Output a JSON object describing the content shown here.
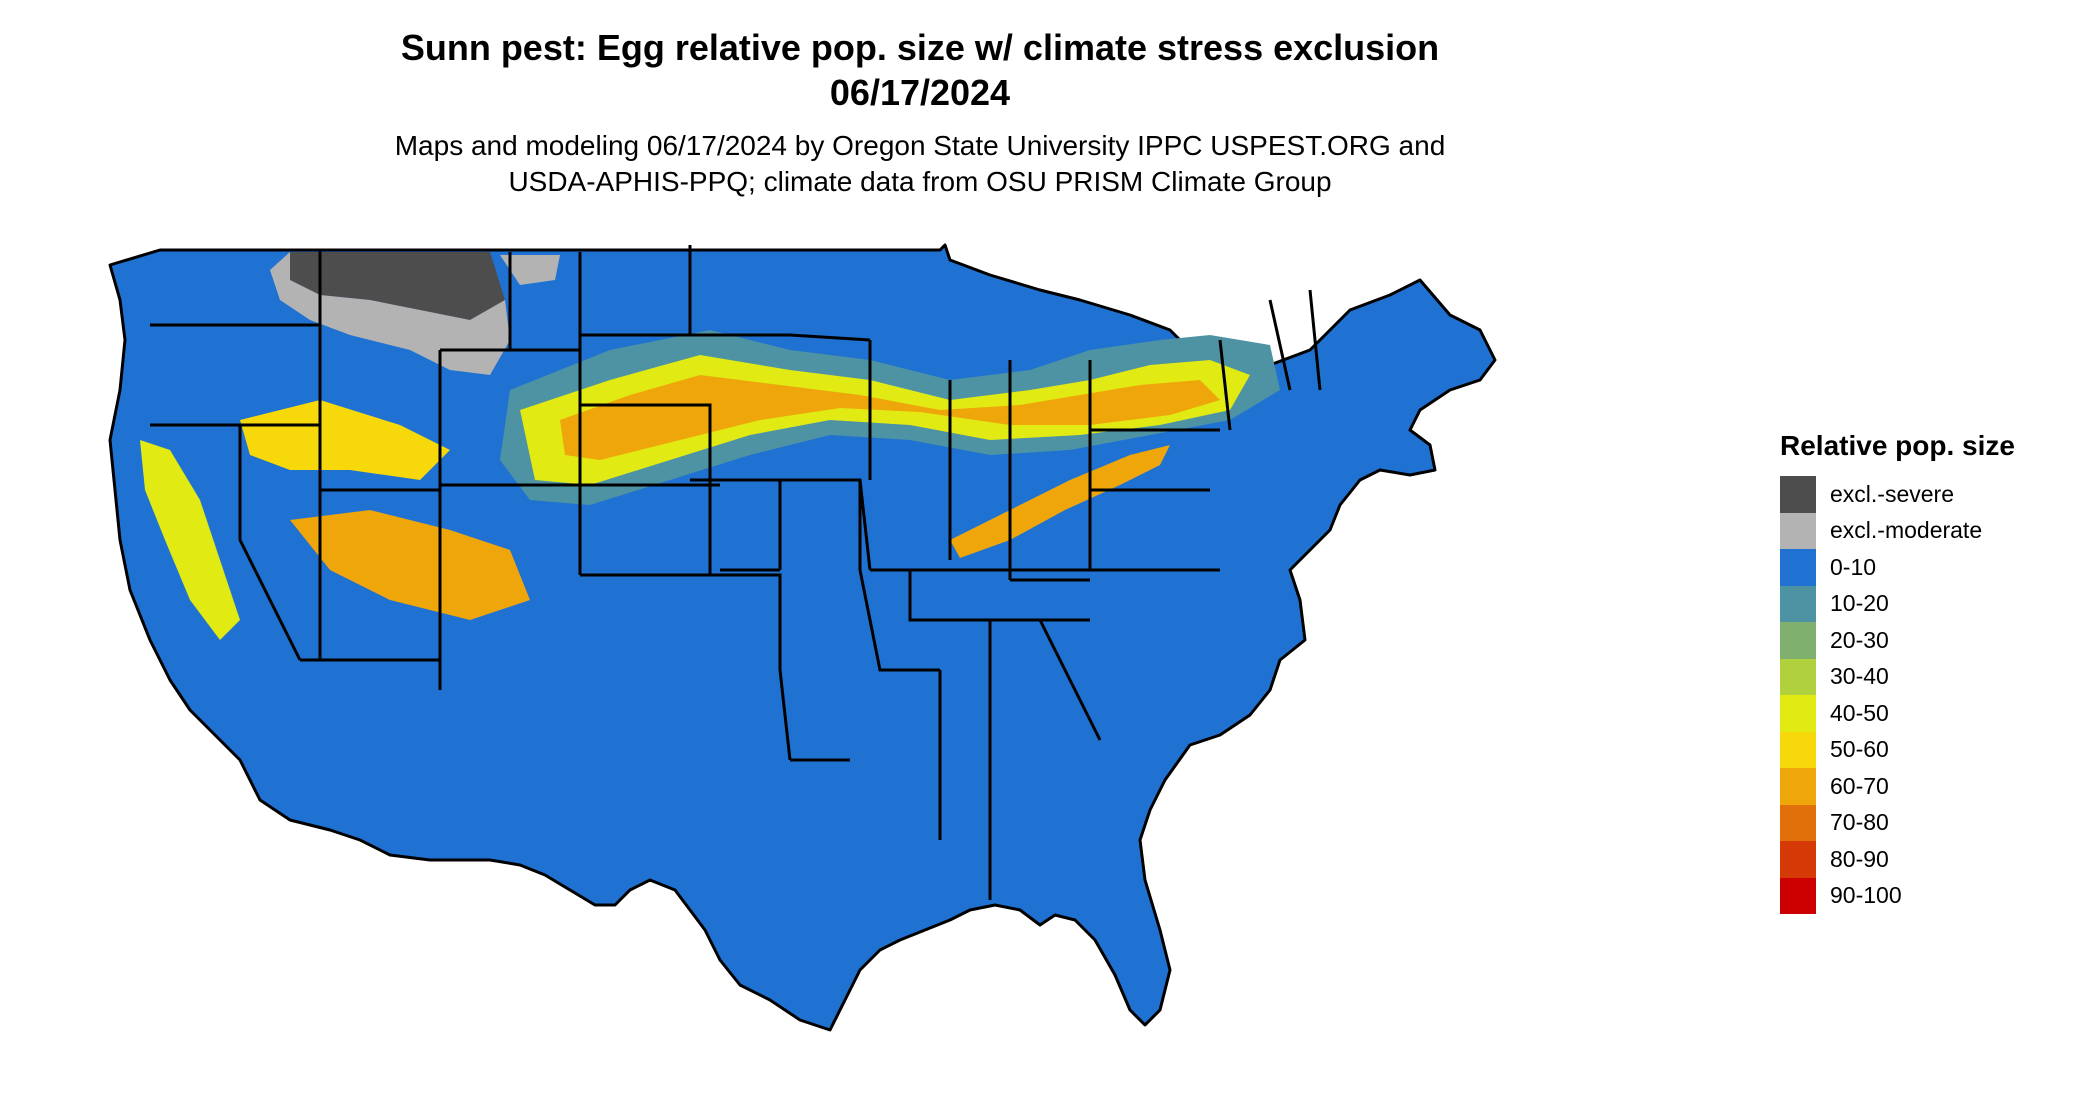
{
  "title_line1": "Sunn pest: Egg relative pop. size w/ climate stress exclusion",
  "title_line2": "06/17/2024",
  "subtitle_line1": "Maps and modeling 06/17/2024 by Oregon State University IPPC USPEST.ORG and",
  "subtitle_line2": "USDA-APHIS-PPQ; climate data from OSU PRISM Climate Group",
  "legend": {
    "title": "Relative pop. size",
    "items": [
      {
        "label": "excl.-severe",
        "color": "#4d4d4d"
      },
      {
        "label": "excl.-moderate",
        "color": "#b3b3b3"
      },
      {
        "label": "0-10",
        "color": "#1f72d1"
      },
      {
        "label": "10-20",
        "color": "#4d93a3"
      },
      {
        "label": "20-30",
        "color": "#7fb06e"
      },
      {
        "label": "30-40",
        "color": "#b0d03e"
      },
      {
        "label": "40-50",
        "color": "#e1ea12"
      },
      {
        "label": "50-60",
        "color": "#f7d80a"
      },
      {
        "label": "60-70",
        "color": "#eea60a"
      },
      {
        "label": "70-80",
        "color": "#e2700a"
      },
      {
        "label": "80-90",
        "color": "#d53a06"
      },
      {
        "label": "90-100",
        "color": "#cc0000"
      }
    ]
  },
  "map": {
    "base_color": "#1f72d1",
    "border_color": "#000000"
  }
}
